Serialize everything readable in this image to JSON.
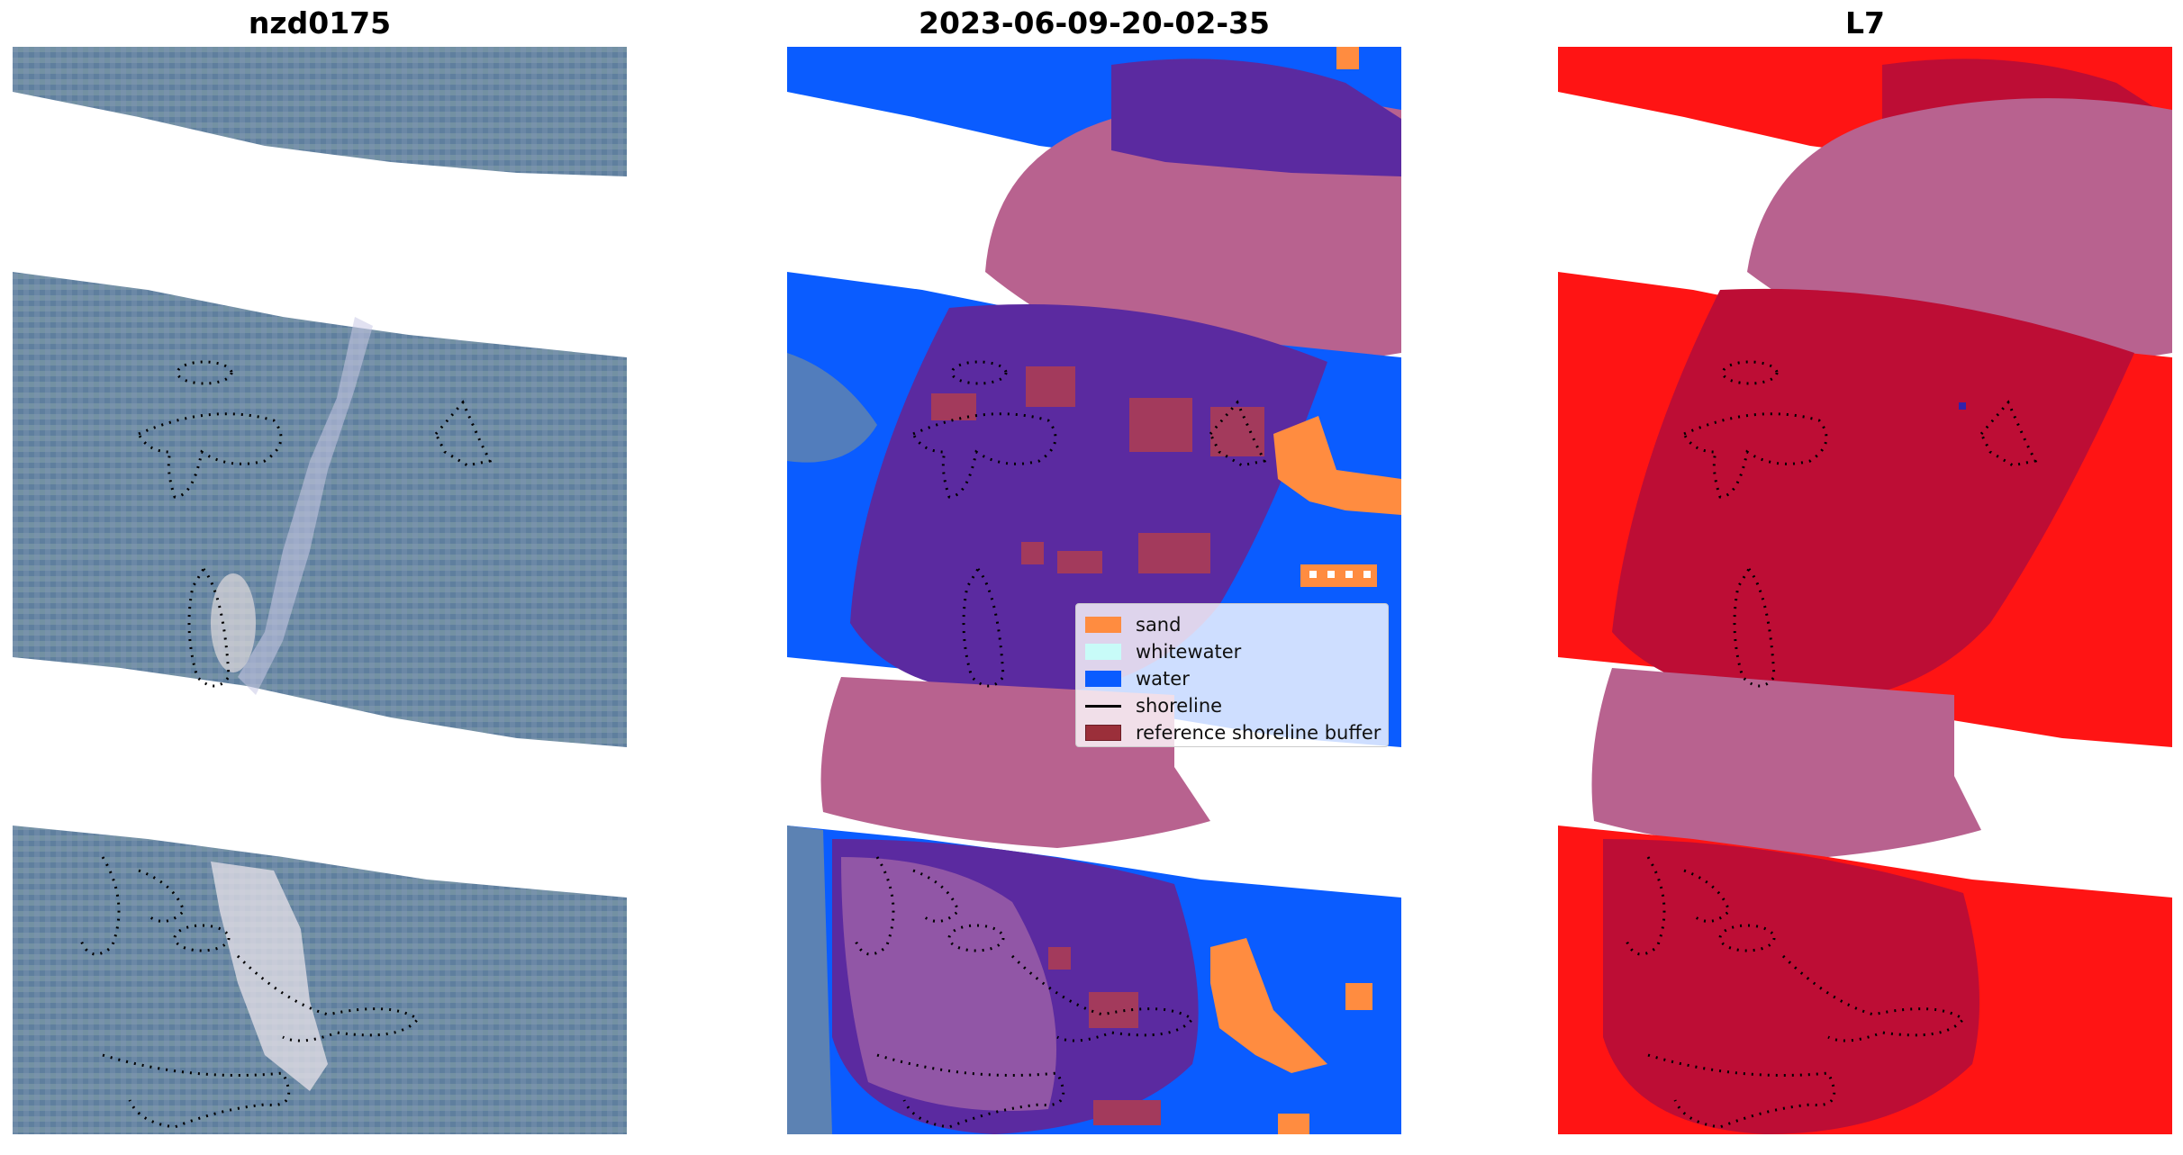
{
  "titles": {
    "left": "nzd0175",
    "middle": "2023-06-09-20-02-35",
    "right": "L7"
  },
  "colors": {
    "imagery_base": "#6a88a8",
    "sand": "#ff8c40",
    "whitewater": "#c8fbf8",
    "water": "#0a5cff",
    "shoreline": "#000000",
    "reference_buffer": "#9b2f3a",
    "purple_overlay": "#5b2aa0",
    "pink_mask": "#b8628f",
    "red_class": "#ff1414",
    "crimson_class": "#bd0d35"
  },
  "legend": {
    "items": [
      {
        "label": "sand",
        "color": "#ff8c40",
        "kind": "patch"
      },
      {
        "label": "whitewater",
        "color": "#c8fbf8",
        "kind": "patch"
      },
      {
        "label": "water",
        "color": "#0a5cff",
        "kind": "patch"
      },
      {
        "label": "shoreline",
        "color": "#000000",
        "kind": "line"
      },
      {
        "label": "reference shoreline buffer",
        "color": "#9b2f3a",
        "kind": "patch"
      }
    ]
  }
}
